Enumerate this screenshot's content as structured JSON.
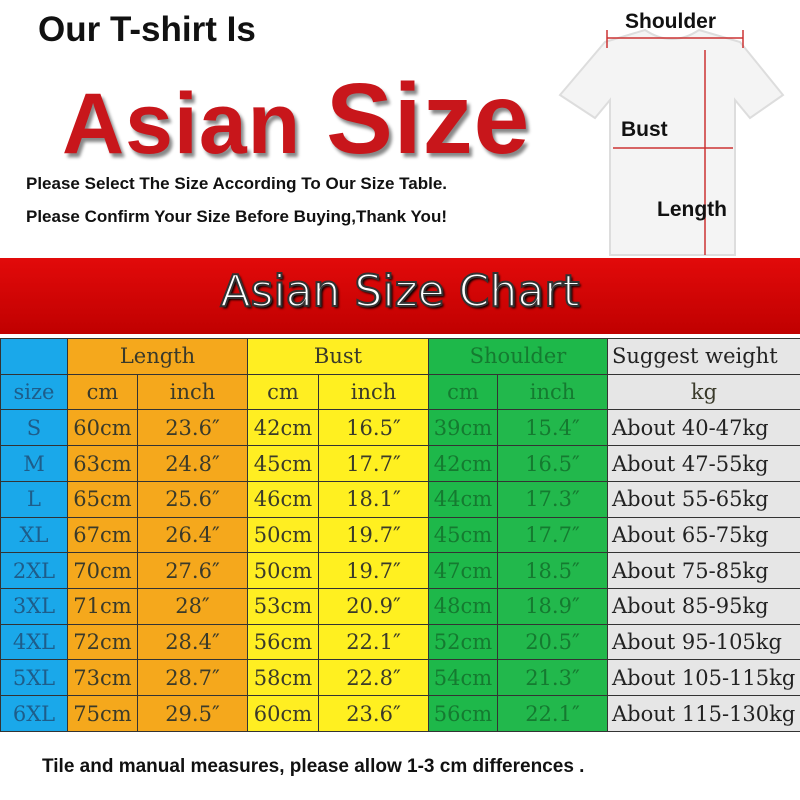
{
  "header": {
    "line1": "Our T-shirt Is",
    "line2a": "Asian ",
    "line2b": "Size",
    "note1": "Please Select The Size According To Our Size Table.",
    "note2": "Please Confirm Your Size Before Buying,Thank You!"
  },
  "diagram": {
    "shoulder": "Shoulder",
    "bust": "Bust",
    "length": "Length"
  },
  "band_title": "Asian Size Chart",
  "table": {
    "groups": [
      "Length",
      "Bust",
      "Shoulder",
      "Suggest weight"
    ],
    "subheaders": [
      "size",
      "cm",
      "inch",
      "cm",
      "inch",
      "cm",
      "inch",
      "kg"
    ],
    "rows": [
      [
        "S",
        "60cm",
        "23.6″",
        "42cm",
        "16.5″",
        "39cm",
        "15.4″",
        "About 40-47kg"
      ],
      [
        "M",
        "63cm",
        "24.8″",
        "45cm",
        "17.7″",
        "42cm",
        "16.5″",
        "About 47-55kg"
      ],
      [
        "L",
        "65cm",
        "25.6″",
        "46cm",
        "18.1″",
        "44cm",
        "17.3″",
        "About 55-65kg"
      ],
      [
        "XL",
        "67cm",
        "26.4″",
        "50cm",
        "19.7″",
        "45cm",
        "17.7″",
        "About 65-75kg"
      ],
      [
        "2XL",
        "70cm",
        "27.6″",
        "50cm",
        "19.7″",
        "47cm",
        "18.5″",
        "About 75-85kg"
      ],
      [
        "3XL",
        "71cm",
        "28″",
        "53cm",
        "20.9″",
        "48cm",
        "18.9″",
        "About 85-95kg"
      ],
      [
        "4XL",
        "72cm",
        "28.4″",
        "56cm",
        "22.1″",
        "52cm",
        "20.5″",
        "About 95-105kg"
      ],
      [
        "5XL",
        "73cm",
        "28.7″",
        "58cm",
        "22.8″",
        "54cm",
        "21.3″",
        "About 105-115kg"
      ],
      [
        "6XL",
        "75cm",
        "29.5″",
        "60cm",
        "23.6″",
        "56cm",
        "22.1″",
        "About 115-130kg"
      ]
    ]
  },
  "footer": "Tile and manual measures, please allow 1-3 cm differences .",
  "colors": {
    "brand_red": "#c8161b",
    "size": "#1aa8ea",
    "length": "#f5a81c",
    "bust": "#ffee22",
    "shoulder": "#1eb84a",
    "weight": "#e6e6e6"
  }
}
